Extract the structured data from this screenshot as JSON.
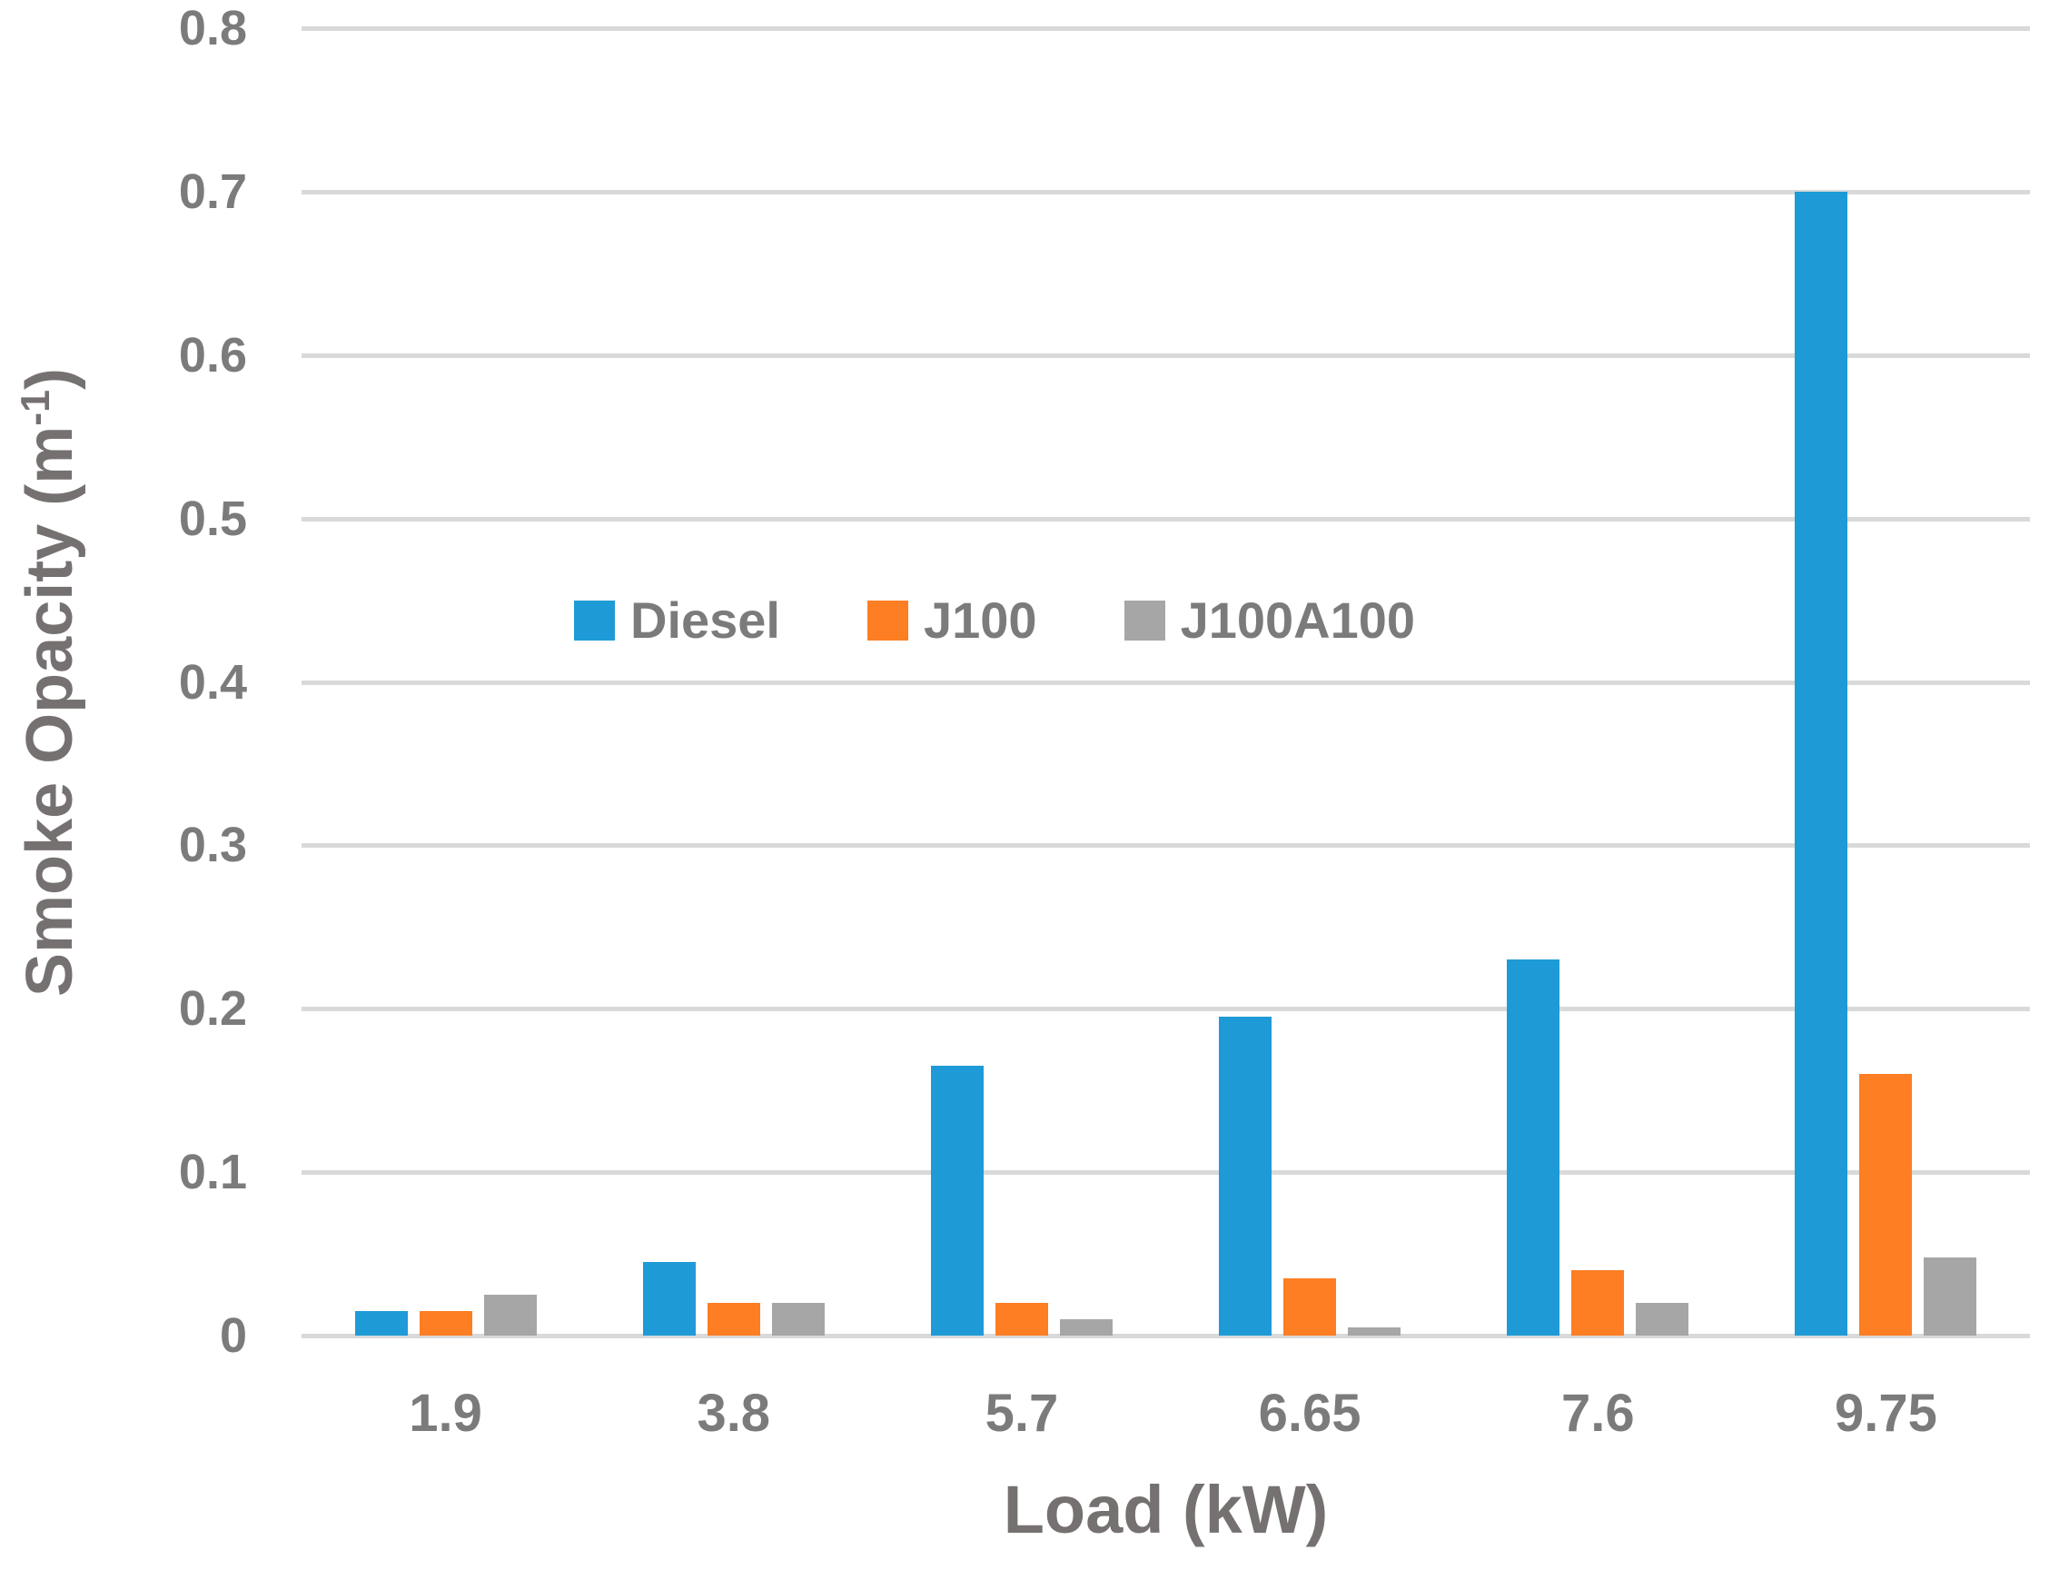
{
  "chart_data": {
    "type": "bar",
    "title": "",
    "xlabel": "Load (kW)",
    "ylabel": "Smoke Opacity (m⁻¹)",
    "ylabel_parts": {
      "prefix": "Smoke Opacity (m",
      "sup": "-1",
      "suffix": ")"
    },
    "categories": [
      "1.9",
      "3.8",
      "5.7",
      "6.65",
      "7.6",
      "9.75"
    ],
    "series": [
      {
        "name": "Diesel",
        "color": "#1e9bd6",
        "values": [
          0.015,
          0.045,
          0.165,
          0.195,
          0.23,
          0.7
        ]
      },
      {
        "name": "J100",
        "color": "#fd7e23",
        "values": [
          0.015,
          0.02,
          0.02,
          0.035,
          0.04,
          0.16
        ]
      },
      {
        "name": "J100A100",
        "color": "#a6a6a6",
        "values": [
          0.025,
          0.02,
          0.01,
          0.005,
          0.02,
          0.048
        ]
      }
    ],
    "ylim": [
      0,
      0.8
    ],
    "yticks": [
      0,
      0.1,
      0.2,
      0.3,
      0.4,
      0.5,
      0.6,
      0.7,
      0.8
    ],
    "ytick_labels": [
      "0",
      "0.1",
      "0.2",
      "0.3",
      "0.4",
      "0.5",
      "0.6",
      "0.7",
      "0.8"
    ],
    "grid": true,
    "legend_position": "inside-upper-middle",
    "colors": {
      "gridline": "#d9d9d9",
      "axis_text": "#7b7b7b",
      "title_text": "#767171",
      "background": "#ffffff"
    }
  },
  "legend": {
    "items": [
      {
        "label": "Diesel"
      },
      {
        "label": "J100"
      },
      {
        "label": "J100A100"
      }
    ]
  }
}
